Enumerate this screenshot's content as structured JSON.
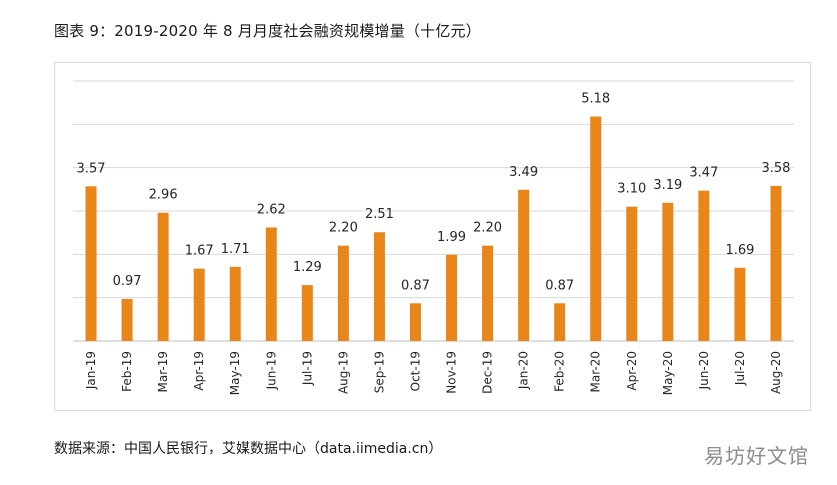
{
  "header": {
    "title": "图表 9：2019-2020 年 8 月月度社会融资规模增量（十亿元）"
  },
  "footer": {
    "source": "数据来源：中国人民银行，艾媒数据中心（data.iimedia.cn）",
    "watermark": "易坊好文馆"
  },
  "chart_data": {
    "type": "bar",
    "title": "图表 9：2019-2020 年 8 月月度社会融资规模增量（十亿元）",
    "xlabel": "",
    "ylabel": "",
    "categories": [
      "Jan-19",
      "Feb-19",
      "Mar-19",
      "Apr-19",
      "May-19",
      "Jun-19",
      "Jul-19",
      "Aug-19",
      "Sep-19",
      "Oct-19",
      "Nov-19",
      "Dec-19",
      "Jan-20",
      "Feb-20",
      "Mar-20",
      "Apr-20",
      "May-20",
      "Jun-20",
      "Jul-20",
      "Aug-20"
    ],
    "values": [
      3.57,
      0.97,
      2.96,
      1.67,
      1.71,
      2.62,
      1.29,
      2.2,
      2.51,
      0.87,
      1.99,
      2.2,
      3.49,
      0.87,
      5.18,
      3.1,
      3.19,
      3.47,
      1.69,
      3.58
    ],
    "value_labels": [
      "3.57",
      "0.97",
      "2.96",
      "1.67",
      "1.71",
      "2.62",
      "1.29",
      "2.20",
      "2.51",
      "0.87",
      "1.99",
      "2.20",
      "3.49",
      "0.87",
      "5.18",
      "3.10",
      "3.19",
      "3.47",
      "1.69",
      "3.58"
    ],
    "ylim": [
      0,
      6
    ],
    "grid": true,
    "bar_color": "#e8861a",
    "grid_color": "#d9d9d9"
  }
}
